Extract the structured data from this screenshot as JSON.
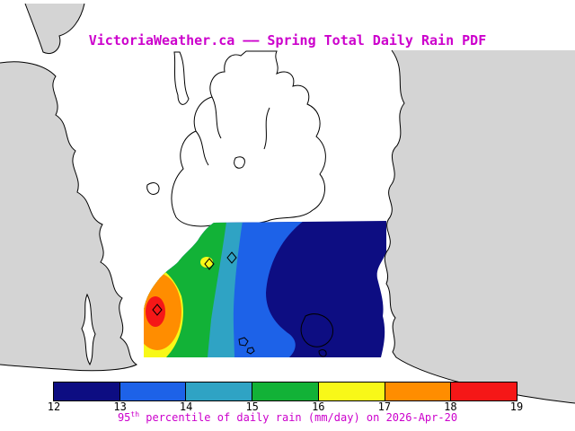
{
  "title": "VictoriaWeather.ca —— Spring Total Daily Rain PDF",
  "caption": {
    "base": "95",
    "sup": "th",
    "rest": " percentile of daily rain (mm/day) on 2026-Apr-20"
  },
  "colors": {
    "title_text": "#cc00cc",
    "caption_text": "#cc00cc",
    "tick_text": "#000000",
    "sea": "#d4d4d4",
    "land": "#ffffff",
    "coastline": "#000000"
  },
  "chart_data": {
    "type": "heatmap",
    "title": "VictoriaWeather.ca —— Spring Total Daily Rain PDF",
    "variable": "95th percentile of daily rain",
    "units": "mm/day",
    "date": "2026-Apr-20",
    "season": "Spring",
    "colorbar": {
      "levels": [
        12,
        13,
        14,
        15,
        16,
        17,
        18,
        19
      ],
      "colors": [
        "#0d0d82",
        "#1d62e8",
        "#2fa3c4",
        "#12b237",
        "#f8f818",
        "#ff8d00",
        "#f51717"
      ],
      "orientation": "horizontal",
      "position": "bottom"
    },
    "pattern_note": "Filled contours over the Victoria BC region: maximum ~18-19 mm/day (red/orange core) in the west, decreasing eastward through yellow, green, cyan and blue bands to ~12-13 mm/day (navy) in the east; small local maximum spot on the northwest coast; station sites marked with small diamonds."
  }
}
